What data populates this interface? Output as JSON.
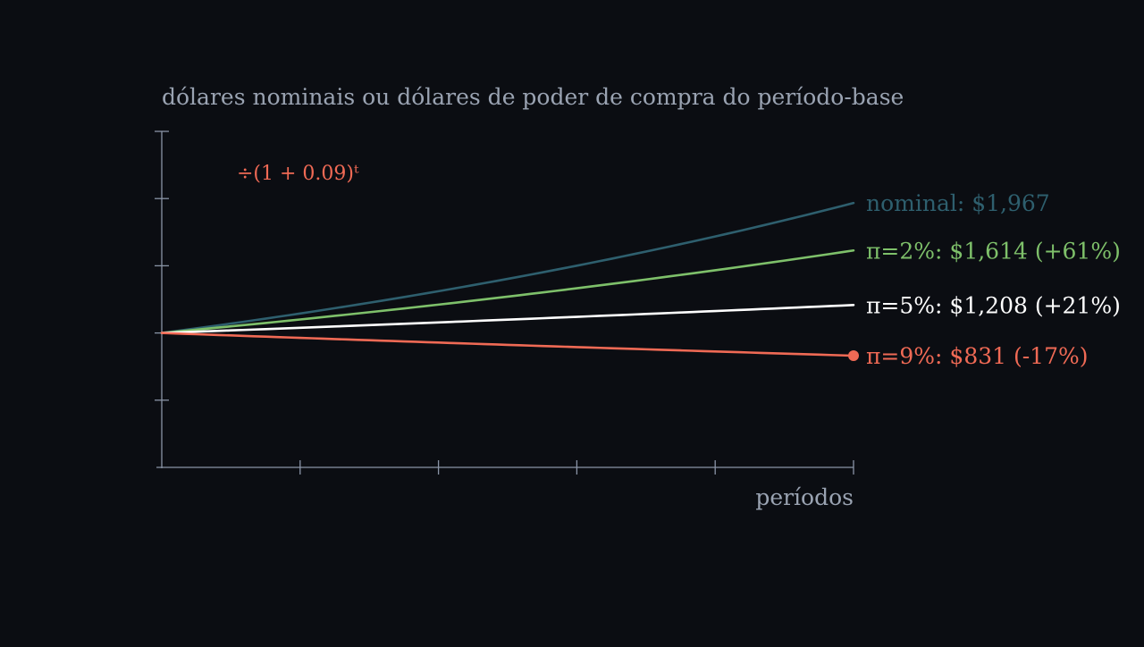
{
  "chart_data": {
    "type": "line",
    "ylabel": "dólares nominais ou dólares de poder de compra do período-base",
    "xlabel": "períodos",
    "formula": "÷(1 + 0.09)ᵗ",
    "x": [
      0,
      1,
      2,
      3,
      4,
      5
    ],
    "ylim": [
      0,
      2500
    ],
    "xlim": [
      0,
      5
    ],
    "series": [
      {
        "key": "nominal",
        "label": "nominal: $1,967",
        "color": "#2e5f6e",
        "start": 1000,
        "end": 1967
      },
      {
        "key": "pi2",
        "label": "π=2%: $1,614 (+61%)",
        "color": "#7ec06a",
        "start": 1000,
        "end": 1614
      },
      {
        "key": "pi5",
        "label": "π=5%: $1,208 (+21%)",
        "color": "#ffffff",
        "start": 1000,
        "end": 1208
      },
      {
        "key": "pi9",
        "label": "π=9%: $831 (-17%)",
        "color": "#f06a55",
        "start": 1000,
        "end": 831
      }
    ],
    "colors": {
      "axis": "#8a94a6",
      "title": "#9aa3b2",
      "formula": "#f06a55",
      "background": "#0b0d12"
    }
  }
}
